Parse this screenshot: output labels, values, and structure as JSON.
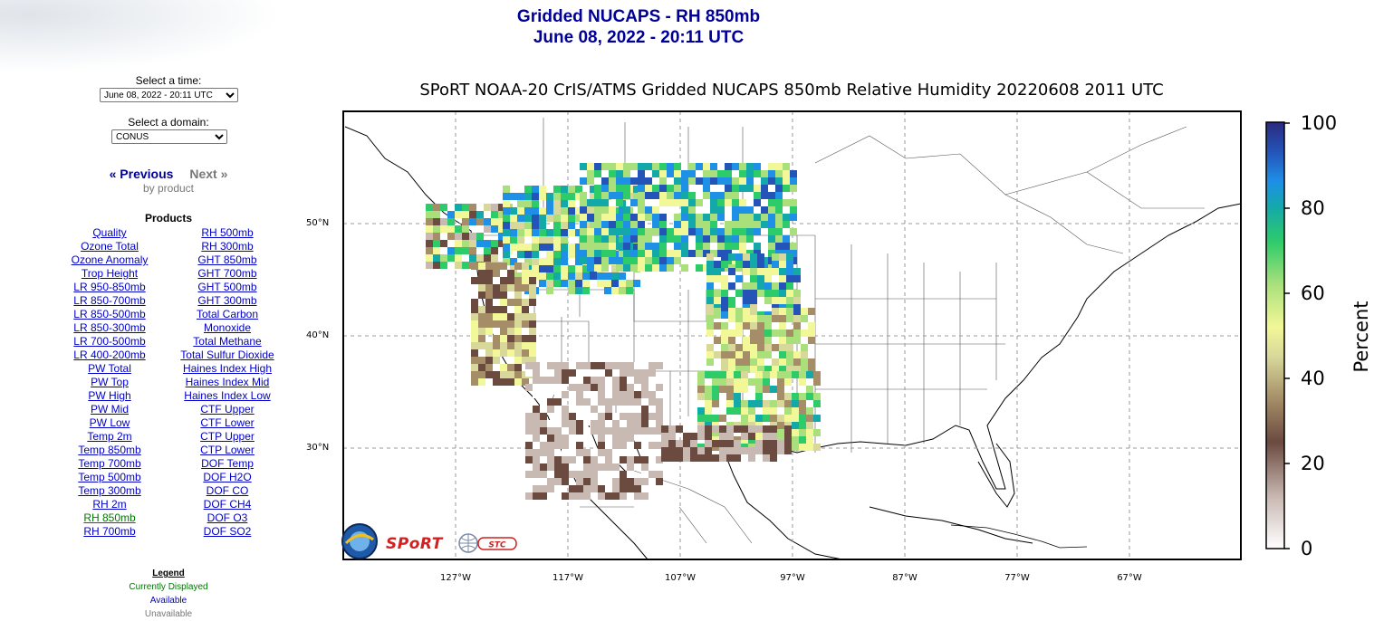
{
  "header": {
    "title_line1": "Gridded NUCAPS - RH 850mb",
    "title_line2": "June 08, 2022 - 20:11 UTC"
  },
  "controls": {
    "time_label": "Select a time:",
    "time_value": "June 08, 2022 - 20:11 UTC",
    "domain_label": "Select a domain:",
    "domain_value": "CONUS"
  },
  "nav": {
    "previous": "« Previous",
    "next": "Next »",
    "by_product": "by product"
  },
  "products": {
    "heading": "Products",
    "left": [
      "Quality",
      "Ozone Total",
      "Ozone Anomaly",
      "Trop Height",
      "LR 950-850mb",
      "LR 850-700mb",
      "LR 850-500mb",
      "LR 850-300mb",
      "LR 700-500mb",
      "LR 400-200mb",
      "PW Total",
      "PW Top",
      "PW High",
      "PW Mid",
      "PW Low",
      "Temp 2m",
      "Temp 850mb",
      "Temp 700mb",
      "Temp 500mb",
      "Temp 300mb",
      "RH 2m",
      "RH 850mb",
      "RH 700mb"
    ],
    "right": [
      "RH 500mb",
      "RH 300mb",
      "GHT 850mb",
      "GHT 700mb",
      "GHT 500mb",
      "GHT 300mb",
      "Total Carbon",
      "Monoxide",
      "Total Methane",
      "Total Sulfur Dioxide",
      "Haines Index High",
      "Haines Index Mid",
      "Haines Index Low",
      "CTF Upper",
      "CTF Lower",
      "CTP Upper",
      "CTP Lower",
      "DOF Temp",
      "DOF H2O",
      "DOF CO",
      "DOF CH4",
      "DOF O3",
      "DOF SO2"
    ],
    "current": "RH 850mb"
  },
  "legend": {
    "heading": "Legend",
    "current": "Currently Displayed",
    "available": "Available",
    "unavailable": "Unavailable"
  },
  "map": {
    "title": "SPoRT NOAA-20 CrIS/ATMS Gridded NUCAPS 850mb Relative Humidity 20220608 2011 UTC",
    "lat_labels": [
      "50°N",
      "40°N",
      "30°N"
    ],
    "lon_labels": [
      "127°W",
      "117°W",
      "107°W",
      "97°W",
      "87°W",
      "77°W",
      "67°W"
    ],
    "colorbar": {
      "label": "Percent",
      "ticks": [
        "100",
        "80",
        "60",
        "40",
        "20",
        "0"
      ],
      "min": 0,
      "max": 100
    },
    "logos": {
      "sport": "SPoRT",
      "stc": "STC"
    },
    "colors": {
      "title": "#000099",
      "link": "#0000cc",
      "current": "#007700",
      "unavailable": "#777777"
    }
  }
}
